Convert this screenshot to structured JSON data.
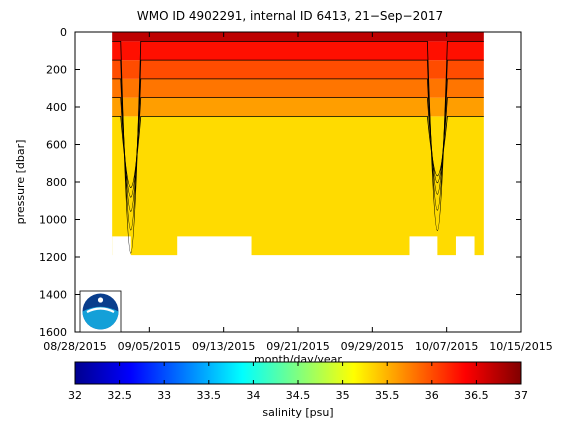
{
  "chart_data": {
    "type": "heatmap",
    "title": "WMO ID 4902291, internal ID 6413, 21−Sep−2017",
    "xlabel": "month/day/year",
    "ylabel": "pressure [dbar]",
    "x_ticks": [
      "08/28/2015",
      "09/05/2015",
      "09/13/2015",
      "09/21/2015",
      "09/29/2015",
      "10/07/2015",
      "10/15/2015"
    ],
    "x_range": [
      "08/28/2015",
      "10/15/2015"
    ],
    "y_ticks": [
      0,
      200,
      400,
      600,
      800,
      1000,
      1200,
      1400,
      1600
    ],
    "y_range": [
      0,
      1600
    ],
    "y_reversed": true,
    "grid": false,
    "colorbar": {
      "label": "salinity [psu]",
      "ticks": [
        32,
        32.5,
        33,
        33.5,
        34,
        34.5,
        35,
        35.5,
        36,
        36.5,
        37
      ],
      "range": [
        32,
        37
      ],
      "colormap": "jet",
      "orientation": "horizontal",
      "placement": "bottom"
    },
    "data_extent": {
      "x_start": "09/01/2015",
      "x_end": "10/11/2015",
      "max_pressure": 1190
    },
    "salinity_layers": [
      {
        "pressure_top": 0,
        "pressure_bottom": 50,
        "salinity": 36.7
      },
      {
        "pressure_top": 50,
        "pressure_bottom": 150,
        "salinity": 36.3
      },
      {
        "pressure_top": 150,
        "pressure_bottom": 250,
        "salinity": 36.0
      },
      {
        "pressure_top": 250,
        "pressure_bottom": 350,
        "salinity": 35.8
      },
      {
        "pressure_top": 350,
        "pressure_bottom": 450,
        "salinity": 35.6
      },
      {
        "pressure_top": 450,
        "pressure_bottom": 1190,
        "salinity": 35.3
      }
    ],
    "features": [
      {
        "type": "deep-trough",
        "date": "09/03/2015",
        "max_depth": 1180
      },
      {
        "type": "deep-trough",
        "date": "10/06/2015",
        "max_depth": 1060
      }
    ]
  },
  "logo": {
    "name": "noaa-logo",
    "colors": {
      "outer": "#0a3e8c",
      "inner": "#14a0d8"
    }
  }
}
